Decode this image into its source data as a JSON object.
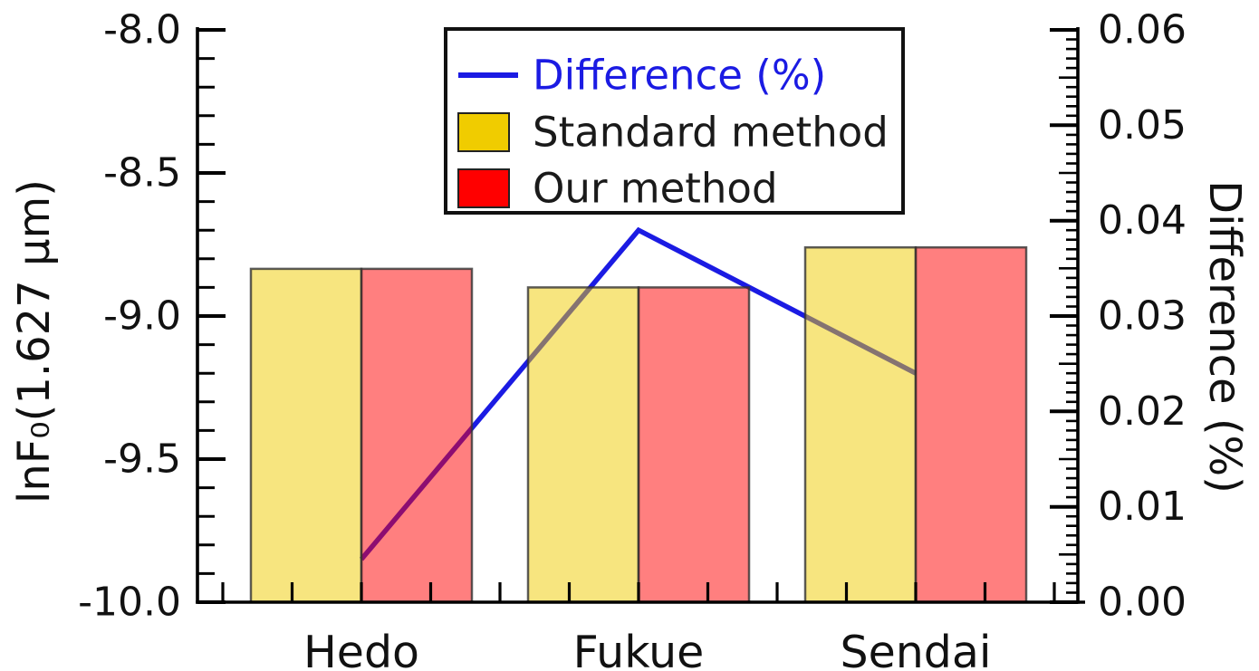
{
  "chart_data": {
    "type": "bar",
    "title": "",
    "categories": [
      "Hedo",
      "Fukue",
      "Sendai"
    ],
    "series": [
      {
        "name": "Standard method",
        "type": "bar",
        "axis": "left",
        "color": "#F0CC00",
        "values": [
          -8.835,
          -8.9,
          -8.76
        ]
      },
      {
        "name": "Our method",
        "type": "bar",
        "axis": "left",
        "color": "#FF0000",
        "values": [
          -8.835,
          -8.9,
          -8.76
        ]
      },
      {
        "name": "Difference (%)",
        "type": "line",
        "axis": "right",
        "color": "#1B1BE3",
        "values": [
          0.0045,
          0.039,
          0.024
        ]
      }
    ],
    "bar_fill_opacity": 0.5,
    "left_axis": {
      "label": "lnF₀(1.627 μm)",
      "min": -10.0,
      "max": -8.0,
      "major_tick_step": 0.5,
      "minor_tick_step": 0.1,
      "tick_labels": [
        "-8.0",
        "-8.5",
        "-9.0",
        "-9.5",
        "-10.0"
      ]
    },
    "right_axis": {
      "label": "Difference (%)",
      "min": 0.0,
      "max": 0.06,
      "major_tick_step": 0.01,
      "medium_tick_step": 0.005,
      "minor_tick_step": 0.001,
      "tick_labels": [
        "0.06",
        "0.05",
        "0.04",
        "0.03",
        "0.02",
        "0.01",
        "0.00"
      ]
    },
    "legend": {
      "position": "top-center",
      "entries": [
        {
          "label": "Difference (%)",
          "marker": "line",
          "color": "#1B1BE3",
          "label_color": "#1B1BE3"
        },
        {
          "label": "Standard method",
          "marker": "square",
          "color": "#F0CC00",
          "label_color": "#1A1A1A"
        },
        {
          "label": "Our method",
          "marker": "square",
          "color": "#FF0000",
          "label_color": "#1A1A1A"
        }
      ]
    },
    "grid": false
  }
}
